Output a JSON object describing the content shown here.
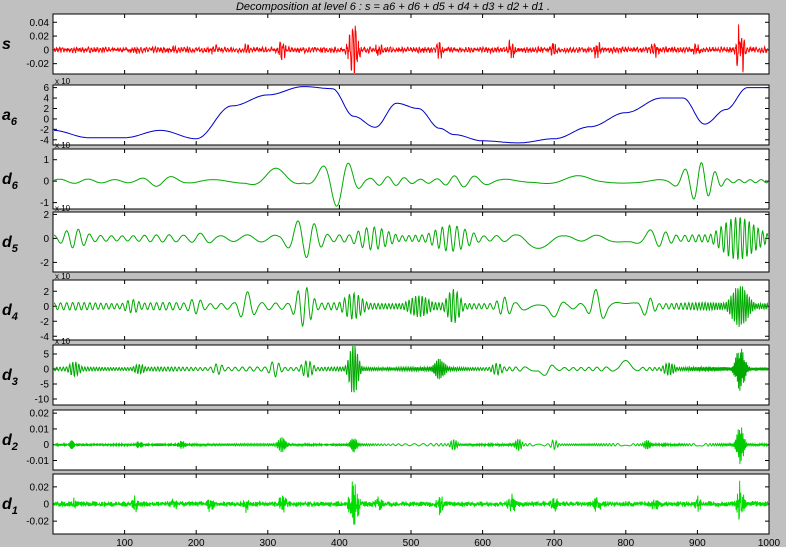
{
  "chart_data": {
    "type": "line",
    "title": "Decomposition at level 6 : s = a6 + d6 + d5 + d4 + d3 + d2 + d1 .",
    "xlim": [
      0,
      1000
    ],
    "xticks": [
      100,
      200,
      300,
      400,
      500,
      600,
      700,
      800,
      900,
      1000
    ],
    "x_labels": [
      "100",
      "200",
      "300",
      "400",
      "500",
      "600",
      "700",
      "800",
      "900",
      "1000"
    ],
    "grid": false,
    "panels": [
      {
        "id": "s",
        "name": "s",
        "sub": "",
        "color": "#ff0000",
        "ylim": [
          -0.035,
          0.052
        ],
        "yticks": [
          0.04,
          0.02,
          0,
          -0.02
        ],
        "ytick_labels": [
          "0.04",
          "0.02",
          "0",
          "-0.02"
        ],
        "exponent_label": "",
        "kind": "noise",
        "base": 0.004,
        "carrier": 0.5,
        "bursts": [
          [
            30,
            0.006,
            5
          ],
          [
            115,
            0.008,
            6
          ],
          [
            170,
            0.008,
            6
          ],
          [
            225,
            0.01,
            6
          ],
          [
            270,
            0.01,
            5
          ],
          [
            320,
            0.014,
            7
          ],
          [
            420,
            0.042,
            8
          ],
          [
            455,
            0.012,
            6
          ],
          [
            540,
            0.014,
            6
          ],
          [
            640,
            0.016,
            6
          ],
          [
            700,
            0.012,
            6
          ],
          [
            760,
            0.014,
            6
          ],
          [
            840,
            0.012,
            7
          ],
          [
            900,
            0.012,
            6
          ],
          [
            960,
            0.045,
            6
          ]
        ]
      },
      {
        "id": "a6",
        "name": "a",
        "sub": "6",
        "color": "#0000cc",
        "ylim": [
          -5,
          6.5
        ],
        "yticks": [
          6,
          4,
          2,
          0,
          -2,
          -4
        ],
        "ytick_labels": [
          "6",
          "4",
          "2",
          "0",
          "-2",
          "-4"
        ],
        "exponent_label": "x 10",
        "kind": "smooth",
        "x": [
          0,
          50,
          100,
          150,
          200,
          250,
          300,
          350,
          390,
          420,
          450,
          480,
          510,
          540,
          560,
          600,
          650,
          700,
          750,
          800,
          850,
          880,
          910,
          940,
          970
        ],
        "y": [
          -2.2,
          -3.6,
          -3.6,
          -2.2,
          -3.8,
          2.5,
          4.6,
          6.2,
          5.8,
          0.5,
          -1.6,
          3.0,
          2.0,
          -1.8,
          -3.0,
          -4.2,
          -4.6,
          -3.8,
          -1.5,
          1.2,
          4.0,
          4.0,
          -1.0,
          1.8,
          6.0
        ]
      },
      {
        "id": "d6",
        "name": "d",
        "sub": "6",
        "color": "#00aa00",
        "ylim": [
          -1.3,
          1.5
        ],
        "yticks": [
          1,
          0,
          -1
        ],
        "ytick_labels": [
          "1",
          "0",
          "-1"
        ],
        "exponent_label": "x 10",
        "kind": "osc",
        "base": 0.1,
        "freq": 0.045,
        "phase": 0.3,
        "bursts": [
          [
            150,
            0.25,
            40
          ],
          [
            310,
            0.7,
            30
          ],
          [
            395,
            1.2,
            30
          ],
          [
            470,
            0.3,
            35
          ],
          [
            580,
            0.35,
            40
          ],
          [
            720,
            0.4,
            40
          ],
          [
            900,
            0.9,
            30
          ]
        ]
      },
      {
        "id": "d5",
        "name": "d",
        "sub": "5",
        "color": "#00aa00",
        "ylim": [
          -2.8,
          2.2
        ],
        "yticks": [
          2,
          0,
          -2
        ],
        "ytick_labels": [
          "2",
          "0",
          "-2"
        ],
        "exponent_label": "x 10",
        "kind": "osc",
        "base": 0.3,
        "freq": 0.11,
        "phase": 1.1,
        "bursts": [
          [
            30,
            0.8,
            25
          ],
          [
            210,
            0.6,
            25
          ],
          [
            350,
            2.3,
            25
          ],
          [
            450,
            1.2,
            30
          ],
          [
            560,
            1.2,
            35
          ],
          [
            680,
            1.0,
            30
          ],
          [
            840,
            1.0,
            30
          ],
          [
            960,
            2.4,
            30
          ]
        ]
      },
      {
        "id": "d4",
        "name": "d",
        "sub": "4",
        "color": "#00aa00",
        "ylim": [
          -4.5,
          3.5
        ],
        "yticks": [
          2,
          0,
          -2,
          -4
        ],
        "ytick_labels": [
          "2",
          "0",
          "-2",
          "-4"
        ],
        "exponent_label": "x 10",
        "kind": "osc",
        "base": 0.5,
        "freq": 0.22,
        "phase": 0.4,
        "bursts": [
          [
            110,
            1.2,
            15
          ],
          [
            200,
            1.3,
            15
          ],
          [
            270,
            2.0,
            15
          ],
          [
            350,
            3.8,
            15
          ],
          [
            420,
            1.8,
            18
          ],
          [
            510,
            1.6,
            20
          ],
          [
            560,
            2.6,
            12
          ],
          [
            630,
            1.4,
            15
          ],
          [
            700,
            1.8,
            15
          ],
          [
            760,
            2.6,
            14
          ],
          [
            830,
            1.6,
            15
          ],
          [
            960,
            3.8,
            15
          ]
        ]
      },
      {
        "id": "d3",
        "name": "d",
        "sub": "3",
        "color": "#00aa00",
        "ylim": [
          -12,
          8
        ],
        "yticks": [
          5,
          0,
          -5,
          -10
        ],
        "ytick_labels": [
          "5",
          "0",
          "-5",
          "-10"
        ],
        "exponent_label": "x 10",
        "kind": "osc",
        "base": 0.7,
        "freq": 0.42,
        "phase": 0.9,
        "bursts": [
          [
            30,
            2.5,
            10
          ],
          [
            120,
            2.0,
            10
          ],
          [
            230,
            2.5,
            10
          ],
          [
            310,
            3.0,
            10
          ],
          [
            355,
            4.0,
            10
          ],
          [
            420,
            9.0,
            8
          ],
          [
            540,
            3.5,
            10
          ],
          [
            620,
            2.5,
            10
          ],
          [
            690,
            3.0,
            10
          ],
          [
            800,
            3.0,
            10
          ],
          [
            860,
            3.0,
            10
          ],
          [
            960,
            10.0,
            8
          ]
        ]
      },
      {
        "id": "d2",
        "name": "d",
        "sub": "2",
        "color": "#00cc00",
        "ylim": [
          -0.016,
          0.022
        ],
        "yticks": [
          0.02,
          0.01,
          0,
          -0.01
        ],
        "ytick_labels": [
          "0.02",
          "0.01",
          "0",
          "-0.01"
        ],
        "exponent_label": "",
        "kind": "osc",
        "base": 0.0008,
        "freq": 1.6,
        "phase": 0.2,
        "bursts": [
          [
            25,
            0.003,
            6
          ],
          [
            120,
            0.003,
            6
          ],
          [
            180,
            0.003,
            6
          ],
          [
            320,
            0.006,
            7
          ],
          [
            420,
            0.005,
            6
          ],
          [
            560,
            0.004,
            6
          ],
          [
            650,
            0.004,
            6
          ],
          [
            700,
            0.004,
            6
          ],
          [
            830,
            0.004,
            6
          ],
          [
            960,
            0.017,
            6
          ]
        ]
      },
      {
        "id": "d1",
        "name": "d",
        "sub": "1",
        "color": "#00dd00",
        "ylim": [
          -0.035,
          0.035
        ],
        "yticks": [
          0.02,
          0,
          -0.02
        ],
        "ytick_labels": [
          "0.02",
          "0",
          "-0.02"
        ],
        "exponent_label": "",
        "kind": "noise",
        "base": 0.003,
        "carrier": 2.6,
        "bursts": [
          [
            30,
            0.008,
            6
          ],
          [
            115,
            0.009,
            6
          ],
          [
            170,
            0.008,
            6
          ],
          [
            220,
            0.01,
            6
          ],
          [
            270,
            0.01,
            5
          ],
          [
            320,
            0.012,
            7
          ],
          [
            420,
            0.033,
            7
          ],
          [
            455,
            0.01,
            6
          ],
          [
            540,
            0.012,
            6
          ],
          [
            640,
            0.013,
            6
          ],
          [
            700,
            0.01,
            6
          ],
          [
            760,
            0.011,
            6
          ],
          [
            840,
            0.01,
            6
          ],
          [
            900,
            0.01,
            6
          ],
          [
            960,
            0.025,
            6
          ]
        ]
      }
    ]
  }
}
